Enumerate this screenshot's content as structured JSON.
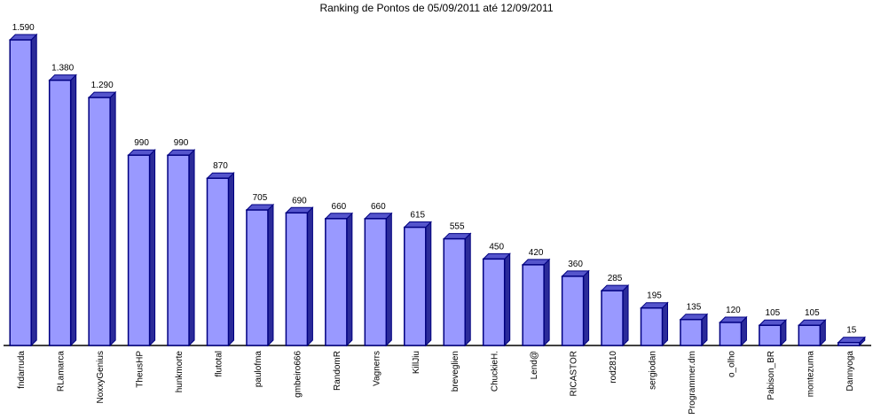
{
  "chart_data": {
    "type": "bar3d",
    "title": "Ranking de Pontos de 05/09/2011 até 12/09/2011",
    "categories": [
      "fndarruda",
      "RLamarca",
      "NoxxyGenius",
      "TheusHP",
      "hunkmorte",
      "flutotal",
      "paulofma",
      "gmbeiro666",
      "RandomR",
      "Vagnerrs",
      "KillJiu",
      "breveglien",
      "ChuckieH.",
      "Lend@",
      "RICASTOR",
      "rod2810",
      "sergiodan",
      "Programmer.dm",
      "o_olho",
      "Pabison_BR",
      "montezuma",
      "Dannyoga"
    ],
    "values": [
      1590,
      1380,
      1290,
      990,
      990,
      870,
      705,
      690,
      660,
      660,
      615,
      555,
      450,
      420,
      360,
      285,
      195,
      135,
      120,
      105,
      105,
      15
    ],
    "value_labels": [
      "1.590",
      "1.380",
      "1.290",
      "990",
      "990",
      "870",
      "705",
      "690",
      "660",
      "660",
      "615",
      "555",
      "450",
      "420",
      "360",
      "285",
      "195",
      "135",
      "120",
      "105",
      "105",
      "15"
    ],
    "color": "#9999ff",
    "ylim": [
      0,
      1590
    ]
  }
}
